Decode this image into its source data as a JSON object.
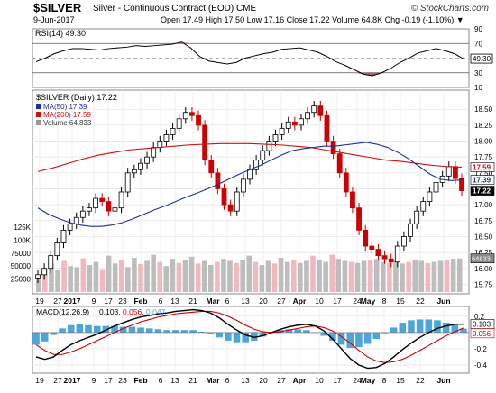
{
  "header": {
    "symbol": "$SILVER",
    "subtitle": "Silver - Continuous Contract (EOD)  CME",
    "date": "9-Jun-2017",
    "quote": "Open 17.49  High 17.50  Low 17.16  Close 17.22  Volume 64.8K  Chg -0.19 (-1.10%) ▼",
    "brand": "© StockCharts.com"
  },
  "chart_data": [
    {
      "type": "line",
      "name": "rsi-panel",
      "label": "RSI(14) 49.30",
      "ticks": [
        "90",
        "70",
        "50",
        "30",
        "10"
      ],
      "ylim": [
        10,
        90
      ],
      "current": 49.3,
      "current_label": "49.30",
      "overbought": 70,
      "oversold": 30,
      "values": [
        45,
        50,
        56,
        60,
        63,
        63,
        62,
        61,
        63,
        64,
        65,
        67,
        66,
        67,
        68,
        69,
        72,
        64,
        52,
        46,
        44,
        42,
        44,
        50,
        53,
        56,
        58,
        62,
        63,
        64,
        61,
        58,
        52,
        45,
        40,
        34,
        28,
        26,
        30,
        36,
        44,
        50,
        57,
        60,
        63,
        60,
        56,
        49
      ]
    },
    {
      "type": "candlestick",
      "name": "price-panel",
      "legend": {
        "title": "$SILVER (Daily) 17.22",
        "ma50": "MA(50) 17.39",
        "ma200": "MA(200) 17.59",
        "volume": "Volume 64,833"
      },
      "ylim": [
        15.6,
        18.8
      ],
      "yticks": [
        "18.50",
        "18.25",
        "18.00",
        "17.75",
        "17.50",
        "17.25",
        "17.00",
        "16.75",
        "16.50",
        "16.25",
        "16.00",
        "15.75"
      ],
      "volume_ticks": [
        "125K",
        "100K",
        "75000",
        "50000",
        "25000"
      ],
      "volume_ylim": [
        0,
        125000
      ],
      "last_labels": {
        "ma200": "17.59",
        "ma50": "17.39",
        "close": "17.22",
        "volume": "64833"
      },
      "colors": {
        "up": "#000000",
        "down": "#cc0000",
        "ma50": "#1a2fa0",
        "ma200": "#d01010"
      },
      "x_labels": [
        "19",
        "27",
        "2017",
        "9",
        "17",
        "23",
        "Feb",
        "6",
        "13",
        "21",
        "Mar",
        "6",
        "13",
        "20",
        "27",
        "Apr",
        "10",
        "17",
        "24",
        "May",
        "8",
        "15",
        "22",
        "Jun"
      ],
      "close": [
        15.9,
        16.0,
        16.2,
        16.4,
        16.6,
        16.7,
        16.8,
        16.9,
        16.95,
        17.1,
        17.05,
        16.9,
        16.95,
        17.2,
        17.5,
        17.55,
        17.65,
        17.75,
        17.9,
        18.0,
        18.1,
        18.2,
        18.35,
        18.45,
        18.4,
        18.25,
        17.7,
        17.5,
        17.25,
        17.0,
        16.9,
        17.2,
        17.4,
        17.55,
        17.7,
        17.85,
        18.0,
        18.1,
        18.2,
        18.3,
        18.25,
        18.35,
        18.45,
        18.55,
        18.4,
        18.0,
        17.8,
        17.5,
        17.2,
        16.95,
        16.6,
        16.35,
        16.3,
        16.2,
        16.15,
        16.1,
        16.35,
        16.5,
        16.7,
        16.9,
        17.05,
        17.2,
        17.35,
        17.45,
        17.6,
        17.41,
        17.22
      ],
      "ma50": [
        16.95,
        16.85,
        16.78,
        16.72,
        16.68,
        16.66,
        16.66,
        16.68,
        16.72,
        16.78,
        16.85,
        16.92,
        16.98,
        17.05,
        17.12,
        17.18,
        17.25,
        17.32,
        17.4,
        17.48,
        17.55,
        17.62,
        17.7,
        17.78,
        17.85,
        17.88,
        17.9,
        17.92,
        17.92,
        17.94,
        17.96,
        17.98,
        17.95,
        17.9,
        17.82,
        17.72,
        17.6,
        17.48,
        17.4,
        17.38,
        17.39
      ],
      "ma200": [
        17.52,
        17.58,
        17.65,
        17.72,
        17.78,
        17.82,
        17.86,
        17.88,
        17.9,
        17.92,
        17.94,
        17.95,
        17.96,
        17.96,
        17.96,
        17.95,
        17.94,
        17.92,
        17.9,
        17.86,
        17.82,
        17.78,
        17.74,
        17.7,
        17.68,
        17.65,
        17.62,
        17.6,
        17.59
      ],
      "volume": [
        30000,
        45000,
        55000,
        42000,
        60000,
        50000,
        48000,
        65000,
        52000,
        58000,
        44000,
        70000,
        55000,
        62000,
        48000,
        66000,
        54000,
        60000,
        72000,
        58000,
        50000,
        64000,
        56000,
        62000,
        68000,
        55000,
        60000,
        52000,
        58000,
        64000,
        60000,
        56000,
        62000,
        70000,
        58000,
        52000,
        60000,
        55000,
        66000,
        58000,
        62000,
        56000,
        60000,
        70000,
        62000,
        58000,
        72000,
        64000,
        60000,
        58000,
        56000,
        60000,
        62000,
        64000,
        58000,
        56000,
        60000,
        55000,
        58000,
        62000,
        60000,
        56000,
        58000,
        60000,
        62000,
        64000,
        64833
      ]
    },
    {
      "type": "line",
      "name": "macd-panel",
      "label": "MACD(12,26,9)",
      "values_text": {
        "macd": "0.103",
        "signal": "0.056",
        "hist": "0.047"
      },
      "yticks": [
        "0.2",
        "0.103",
        "0.056",
        "0.0",
        "-0.2",
        "-0.4"
      ],
      "ylim": [
        -0.5,
        0.32
      ],
      "colors": {
        "macd": "#000000",
        "signal": "#cc0000",
        "hist": "#4da6d9"
      },
      "x_labels": [
        "19",
        "27",
        "2017",
        "9",
        "17",
        "23",
        "Feb",
        "6",
        "13",
        "21",
        "Mar",
        "6",
        "13",
        "20",
        "27",
        "Apr",
        "10",
        "17",
        "24",
        "May",
        "8",
        "15",
        "22",
        "Jun"
      ],
      "macd": [
        -0.3,
        -0.33,
        -0.3,
        -0.22,
        -0.15,
        -0.1,
        -0.06,
        -0.02,
        0.03,
        0.08,
        0.12,
        0.16,
        0.19,
        0.21,
        0.23,
        0.24,
        0.26,
        0.27,
        0.28,
        0.27,
        0.24,
        0.18,
        0.1,
        0.03,
        -0.03,
        -0.06,
        -0.04,
        0.0,
        0.04,
        0.07,
        0.09,
        0.1,
        0.08,
        0.02,
        -0.08,
        -0.2,
        -0.32,
        -0.4,
        -0.44,
        -0.43,
        -0.38,
        -0.3,
        -0.21,
        -0.13,
        -0.06,
        0.0,
        0.05,
        0.08,
        0.1,
        0.103
      ],
      "signal": [
        -0.15,
        -0.22,
        -0.27,
        -0.27,
        -0.24,
        -0.2,
        -0.15,
        -0.1,
        -0.05,
        0.0,
        0.05,
        0.09,
        0.13,
        0.16,
        0.19,
        0.21,
        0.23,
        0.24,
        0.25,
        0.26,
        0.26,
        0.24,
        0.2,
        0.15,
        0.09,
        0.04,
        0.01,
        0.0,
        0.01,
        0.03,
        0.05,
        0.07,
        0.08,
        0.06,
        0.02,
        -0.05,
        -0.13,
        -0.22,
        -0.3,
        -0.35,
        -0.37,
        -0.36,
        -0.33,
        -0.28,
        -0.22,
        -0.16,
        -0.1,
        -0.04,
        0.01,
        0.056
      ]
    }
  ]
}
